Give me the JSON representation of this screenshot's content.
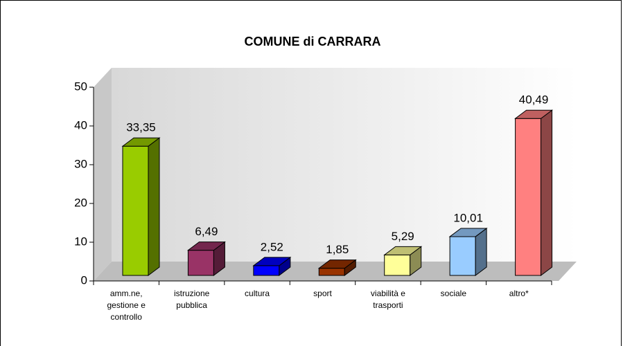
{
  "chart_data": {
    "type": "bar3d",
    "title": "COMUNE di CARRARA",
    "categories": [
      "amm.ne, gestione e controllo",
      "istruzione pubblica",
      "cultura",
      "sport",
      "viabilità e trasporti",
      "sociale",
      "altro*"
    ],
    "values": [
      33.35,
      6.49,
      2.52,
      1.85,
      5.29,
      10.01,
      40.49
    ],
    "value_labels": [
      "33,35",
      "6,49",
      "2,52",
      "1,85",
      "5,29",
      "10,01",
      "40,49"
    ],
    "colors": [
      "#99cc00",
      "#993366",
      "#0000ff",
      "#993300",
      "#ffff99",
      "#99ccff",
      "#ff8080"
    ],
    "ylim": [
      0,
      50
    ],
    "yticks": [
      0,
      10,
      20,
      30,
      40,
      50
    ]
  }
}
